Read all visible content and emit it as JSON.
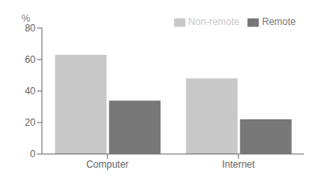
{
  "chart_data": {
    "type": "bar",
    "ylabel": "%",
    "categories": [
      "Computer",
      "Internet"
    ],
    "series": [
      {
        "name": "Non-remote",
        "color": "#c8c8c8",
        "values": [
          63,
          48
        ]
      },
      {
        "name": "Remote",
        "color": "#787878",
        "values": [
          34,
          22
        ]
      }
    ],
    "ylim": [
      0,
      80
    ],
    "yticks": [
      0,
      20,
      40,
      60,
      80
    ],
    "legend": "upper right",
    "grid": false
  }
}
